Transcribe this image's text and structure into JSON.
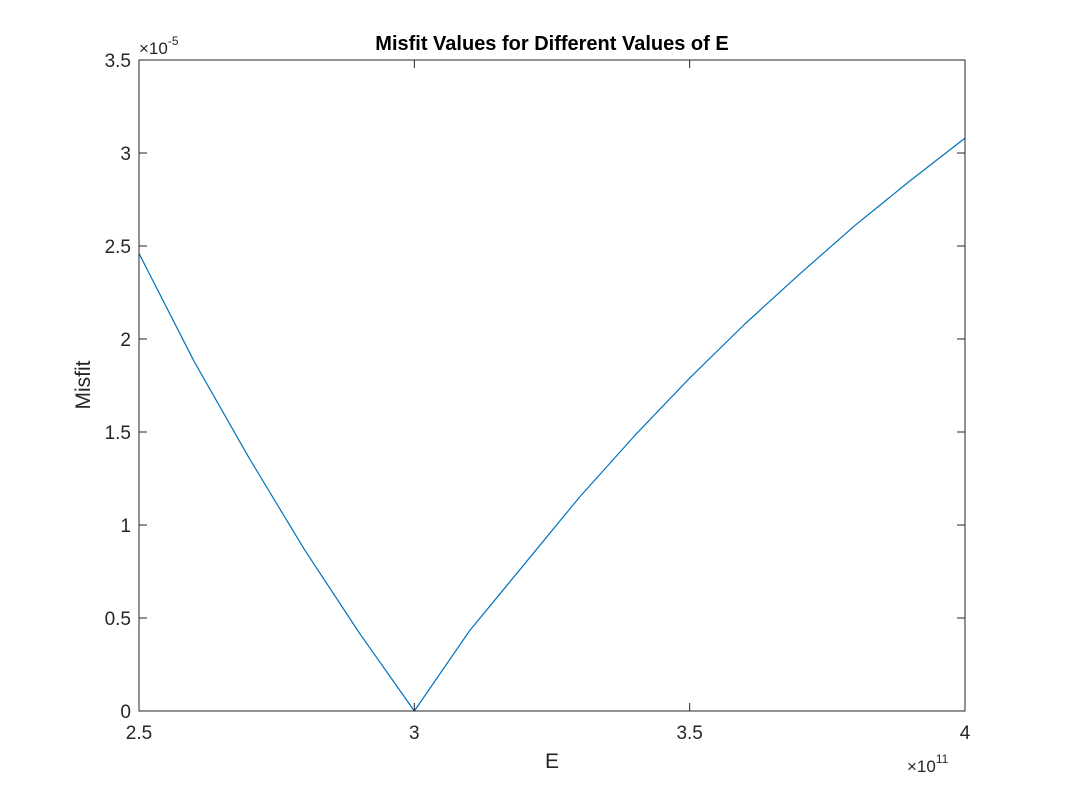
{
  "chart_data": {
    "type": "line",
    "title": "Misfit Values for Different Values of E",
    "xlabel": "E",
    "ylabel": "Misfit",
    "xlim": [
      2.5,
      4
    ],
    "ylim": [
      0,
      3.5
    ],
    "x_exponent_label": {
      "base": "×10",
      "power": "11"
    },
    "y_exponent_label": {
      "base": "×10",
      "power": "-5"
    },
    "x_ticks": [
      2.5,
      3,
      3.5,
      4
    ],
    "x_tick_labels": [
      "2.5",
      "3",
      "3.5",
      "4"
    ],
    "y_ticks": [
      0,
      0.5,
      1,
      1.5,
      2,
      2.5,
      3,
      3.5
    ],
    "y_tick_labels": [
      "0",
      "0.5",
      "1",
      "1.5",
      "2",
      "2.5",
      "3",
      "3.5"
    ],
    "grid": false,
    "series": [
      {
        "name": "misfit",
        "color": "#0072BD",
        "x": [
          2.5,
          2.6,
          2.7,
          2.8,
          2.9,
          3.0,
          3.1,
          3.2,
          3.3,
          3.4,
          3.5,
          3.6,
          3.7,
          3.8,
          3.9,
          4.0
        ],
        "y": [
          2.46,
          1.88,
          1.36,
          0.87,
          0.42,
          0.0,
          0.43,
          0.79,
          1.15,
          1.48,
          1.79,
          2.08,
          2.35,
          2.61,
          2.85,
          3.08
        ]
      }
    ]
  }
}
